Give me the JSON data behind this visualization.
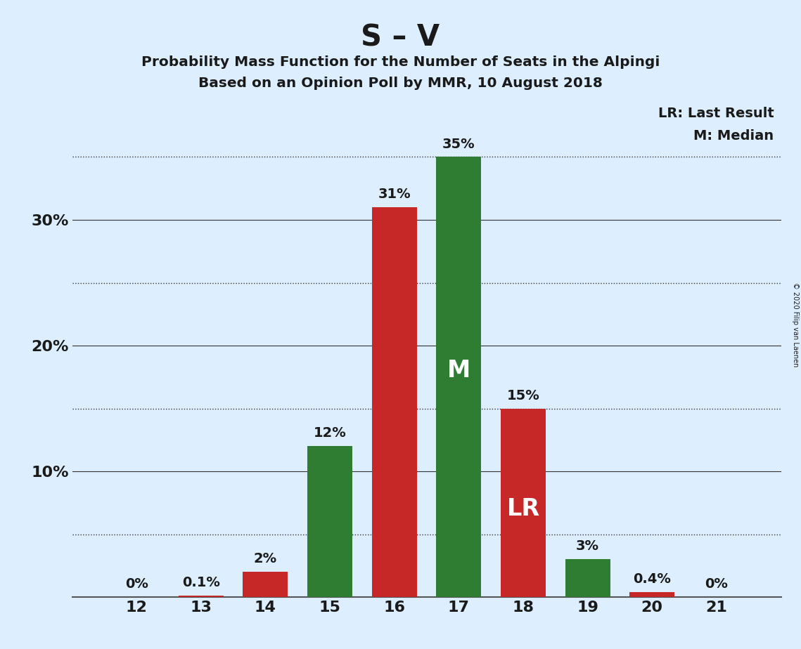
{
  "title": "S – V",
  "subtitle1": "Probability Mass Function for the Number of Seats in the Alpingi",
  "subtitle2": "Based on an Opinion Poll by MMR, 10 August 2018",
  "copyright": "© 2020 Filip van Laenen",
  "seats": [
    12,
    13,
    14,
    15,
    16,
    17,
    18,
    19,
    20,
    21
  ],
  "bar_values": [
    0.0,
    0.1,
    2.0,
    12.0,
    31.0,
    35.0,
    15.0,
    3.0,
    0.4,
    0.0
  ],
  "bar_colors": [
    "#c62828",
    "#c62828",
    "#c62828",
    "#2e7d32",
    "#c62828",
    "#2e7d32",
    "#c62828",
    "#2e7d32",
    "#c62828",
    "#c62828"
  ],
  "bar_labels": [
    "0%",
    "0.1%",
    "2%",
    "12%",
    "31%",
    "35%",
    "15%",
    "3%",
    "0.4%",
    "0%"
  ],
  "green_color": "#2e7d32",
  "red_color": "#c62828",
  "background_color": "#ddeeff",
  "text_color": "#1a1a1a",
  "median_seat": 17,
  "lr_seat": 18,
  "lr_label": "LR",
  "median_label": "M",
  "legend_lr": "LR: Last Result",
  "legend_m": "M: Median",
  "yticks": [
    0,
    10,
    20,
    30
  ],
  "ytick_labels": [
    "",
    "10%",
    "20%",
    "30%"
  ],
  "solid_lines": [
    10,
    20,
    30
  ],
  "dotted_lines": [
    5,
    15,
    25,
    35
  ],
  "ylim": [
    0,
    40
  ],
  "xlim": [
    11.0,
    22.0
  ],
  "bar_width": 0.7
}
